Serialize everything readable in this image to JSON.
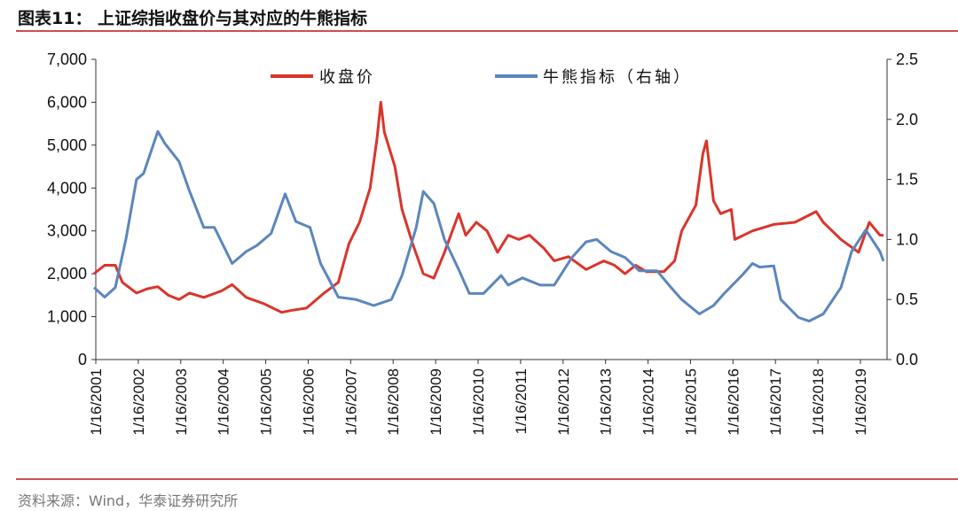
{
  "title": "图表11：  上证综指收盘价与其对应的牛熊指标",
  "source": "资料来源：Wind，华泰证券研究所",
  "colors": {
    "price": "#d9352a",
    "indicator": "#5b86be",
    "rule": "#c9504b"
  },
  "chart_data": {
    "type": "line",
    "title": "",
    "legend_placement": "top",
    "grid": false,
    "x_ticks": [
      "1/16/2001",
      "1/16/2002",
      "1/16/2003",
      "1/16/2004",
      "1/16/2005",
      "1/16/2006",
      "1/16/2007",
      "1/16/2008",
      "1/16/2009",
      "1/16/2010",
      "1/16/2011",
      "1/16/2012",
      "1/16/2013",
      "1/16/2014",
      "1/16/2015",
      "1/16/2016",
      "1/16/2017",
      "1/16/2018",
      "1/16/2019"
    ],
    "xlim": [
      "2001-01-16",
      "2019-08-15"
    ],
    "y_left": {
      "ylim": [
        0,
        7000
      ],
      "ticks": [
        "0",
        "1,000",
        "2,000",
        "3,000",
        "4,000",
        "5,000",
        "6,000",
        "7,000"
      ]
    },
    "y_right": {
      "ylim": [
        0,
        2.5
      ],
      "ticks": [
        "0.0",
        "0.5",
        "1.0",
        "1.5",
        "2.0",
        "2.5"
      ]
    },
    "series": [
      {
        "name": "收盘价",
        "axis": "left",
        "points": [
          [
            "2001-01",
            2000
          ],
          [
            "2001-04",
            2200
          ],
          [
            "2001-07",
            2200
          ],
          [
            "2001-09",
            1800
          ],
          [
            "2002-01",
            1550
          ],
          [
            "2002-04",
            1650
          ],
          [
            "2002-07",
            1700
          ],
          [
            "2002-10",
            1500
          ],
          [
            "2003-01",
            1400
          ],
          [
            "2003-04",
            1550
          ],
          [
            "2003-08",
            1450
          ],
          [
            "2004-01",
            1600
          ],
          [
            "2004-04",
            1750
          ],
          [
            "2004-08",
            1450
          ],
          [
            "2005-01",
            1300
          ],
          [
            "2005-06",
            1100
          ],
          [
            "2005-09",
            1150
          ],
          [
            "2006-01",
            1200
          ],
          [
            "2006-06",
            1550
          ],
          [
            "2006-10",
            1800
          ],
          [
            "2007-01",
            2700
          ],
          [
            "2007-04",
            3200
          ],
          [
            "2007-07",
            4000
          ],
          [
            "2007-09",
            5200
          ],
          [
            "2007-10",
            6000
          ],
          [
            "2007-11",
            5300
          ],
          [
            "2008-02",
            4500
          ],
          [
            "2008-04",
            3500
          ],
          [
            "2008-07",
            2700
          ],
          [
            "2008-10",
            2000
          ],
          [
            "2009-01",
            1900
          ],
          [
            "2009-04",
            2500
          ],
          [
            "2009-08",
            3400
          ],
          [
            "2009-10",
            2900
          ],
          [
            "2010-01",
            3200
          ],
          [
            "2010-04",
            3000
          ],
          [
            "2010-07",
            2500
          ],
          [
            "2010-10",
            2900
          ],
          [
            "2011-01",
            2800
          ],
          [
            "2011-04",
            2900
          ],
          [
            "2011-08",
            2600
          ],
          [
            "2011-11",
            2300
          ],
          [
            "2012-03",
            2400
          ],
          [
            "2012-08",
            2100
          ],
          [
            "2013-01",
            2300
          ],
          [
            "2013-04",
            2200
          ],
          [
            "2013-07",
            2000
          ],
          [
            "2013-10",
            2200
          ],
          [
            "2014-01",
            2050
          ],
          [
            "2014-06",
            2050
          ],
          [
            "2014-09",
            2300
          ],
          [
            "2014-11",
            3000
          ],
          [
            "2015-03",
            3600
          ],
          [
            "2015-05",
            4800
          ],
          [
            "2015-06",
            5100
          ],
          [
            "2015-08",
            3700
          ],
          [
            "2015-10",
            3400
          ],
          [
            "2016-01",
            3500
          ],
          [
            "2016-02",
            2800
          ],
          [
            "2016-07",
            3000
          ],
          [
            "2017-01",
            3150
          ],
          [
            "2017-07",
            3200
          ],
          [
            "2018-01",
            3450
          ],
          [
            "2018-03",
            3200
          ],
          [
            "2018-08",
            2800
          ],
          [
            "2019-01",
            2500
          ],
          [
            "2019-04",
            3200
          ],
          [
            "2019-07",
            2900
          ],
          [
            "2019-08",
            2900
          ]
        ]
      },
      {
        "name": "牛熊指标（右轴）",
        "axis": "right",
        "points": [
          [
            "2001-01",
            0.6
          ],
          [
            "2001-04",
            0.52
          ],
          [
            "2001-07",
            0.6
          ],
          [
            "2001-10",
            1.0
          ],
          [
            "2002-01",
            1.5
          ],
          [
            "2002-03",
            1.55
          ],
          [
            "2002-07",
            1.9
          ],
          [
            "2002-09",
            1.8
          ],
          [
            "2003-01",
            1.65
          ],
          [
            "2003-04",
            1.4
          ],
          [
            "2003-08",
            1.1
          ],
          [
            "2003-11",
            1.1
          ],
          [
            "2004-04",
            0.8
          ],
          [
            "2004-08",
            0.9
          ],
          [
            "2004-11",
            0.95
          ],
          [
            "2005-03",
            1.05
          ],
          [
            "2005-07",
            1.38
          ],
          [
            "2005-10",
            1.15
          ],
          [
            "2006-02",
            1.1
          ],
          [
            "2006-05",
            0.8
          ],
          [
            "2006-10",
            0.52
          ],
          [
            "2007-03",
            0.5
          ],
          [
            "2007-08",
            0.45
          ],
          [
            "2008-01",
            0.5
          ],
          [
            "2008-04",
            0.7
          ],
          [
            "2008-08",
            1.1
          ],
          [
            "2008-10",
            1.4
          ],
          [
            "2009-01",
            1.3
          ],
          [
            "2009-04",
            1.0
          ],
          [
            "2009-08",
            0.75
          ],
          [
            "2009-11",
            0.55
          ],
          [
            "2010-03",
            0.55
          ],
          [
            "2010-08",
            0.7
          ],
          [
            "2010-10",
            0.62
          ],
          [
            "2011-02",
            0.68
          ],
          [
            "2011-07",
            0.62
          ],
          [
            "2011-11",
            0.62
          ],
          [
            "2012-04",
            0.85
          ],
          [
            "2012-08",
            0.98
          ],
          [
            "2012-11",
            1.0
          ],
          [
            "2013-03",
            0.9
          ],
          [
            "2013-07",
            0.85
          ],
          [
            "2013-11",
            0.74
          ],
          [
            "2014-04",
            0.74
          ],
          [
            "2014-08",
            0.6
          ],
          [
            "2014-11",
            0.5
          ],
          [
            "2015-04",
            0.38
          ],
          [
            "2015-08",
            0.45
          ],
          [
            "2015-11",
            0.55
          ],
          [
            "2016-04",
            0.7
          ],
          [
            "2016-07",
            0.8
          ],
          [
            "2016-09",
            0.77
          ],
          [
            "2017-01",
            0.78
          ],
          [
            "2017-03",
            0.5
          ],
          [
            "2017-08",
            0.35
          ],
          [
            "2017-11",
            0.32
          ],
          [
            "2018-03",
            0.38
          ],
          [
            "2018-08",
            0.6
          ],
          [
            "2018-11",
            0.9
          ],
          [
            "2019-03",
            1.08
          ],
          [
            "2019-07",
            0.9
          ],
          [
            "2019-08",
            0.82
          ]
        ]
      }
    ]
  }
}
